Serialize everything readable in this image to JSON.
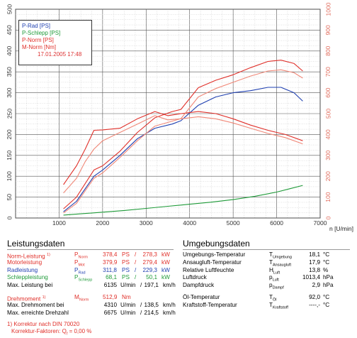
{
  "chart_data": {
    "type": "line",
    "xlabel": "n [U/min]",
    "x_ticks": [
      "1000",
      "2000",
      "3000",
      "4000",
      "5000",
      "6000",
      "7000"
    ],
    "y_left_ticks": [
      "0",
      "50",
      "100",
      "150",
      "200",
      "250",
      "300",
      "350",
      "400",
      "450",
      "500"
    ],
    "y_right_ticks": [
      "0",
      "100",
      "200",
      "300",
      "400",
      "500",
      "600",
      "700",
      "800",
      "900",
      "1000"
    ],
    "xlim": [
      0,
      7000
    ],
    "ylim_left": [
      0,
      500
    ],
    "ylim_right": [
      0,
      1000
    ],
    "grid": true,
    "legend_position": "top-left",
    "series": [
      {
        "name": "P-Rad [PS]",
        "color": "#1e3fb0",
        "axis": "left",
        "points": [
          [
            1100,
            15
          ],
          [
            1400,
            40
          ],
          [
            1800,
            100
          ],
          [
            2000,
            115
          ],
          [
            2400,
            150
          ],
          [
            2800,
            190
          ],
          [
            3200,
            215
          ],
          [
            3600,
            225
          ],
          [
            3800,
            233
          ],
          [
            4200,
            270
          ],
          [
            4600,
            290
          ],
          [
            5000,
            300
          ],
          [
            5400,
            305
          ],
          [
            5800,
            313
          ],
          [
            6100,
            313
          ],
          [
            6400,
            300
          ],
          [
            6600,
            280
          ]
        ]
      },
      {
        "name": "P-Schlepp [PS]",
        "color": "#1e9a38",
        "axis": "left",
        "points": [
          [
            1100,
            7
          ],
          [
            1500,
            10
          ],
          [
            2000,
            14
          ],
          [
            2500,
            18
          ],
          [
            3000,
            23
          ],
          [
            3500,
            28
          ],
          [
            4000,
            33
          ],
          [
            4500,
            38
          ],
          [
            5000,
            44
          ],
          [
            5500,
            52
          ],
          [
            6000,
            62
          ],
          [
            6300,
            70
          ],
          [
            6600,
            78
          ]
        ]
      },
      {
        "name": "P-Norm [PS]",
        "color": "#e0302a",
        "axis": "left",
        "points": [
          [
            1100,
            22
          ],
          [
            1400,
            50
          ],
          [
            1800,
            115
          ],
          [
            2000,
            125
          ],
          [
            2400,
            160
          ],
          [
            2800,
            205
          ],
          [
            3200,
            240
          ],
          [
            3600,
            255
          ],
          [
            3800,
            260
          ],
          [
            4200,
            312
          ],
          [
            4600,
            330
          ],
          [
            5000,
            343
          ],
          [
            5400,
            360
          ],
          [
            5800,
            375
          ],
          [
            6100,
            378
          ],
          [
            6400,
            370
          ],
          [
            6600,
            352
          ]
        ]
      },
      {
        "name": "M-Norm [Nm]",
        "color": "#e0302a",
        "axis": "right",
        "points": [
          [
            1100,
            160
          ],
          [
            1400,
            250
          ],
          [
            1600,
            330
          ],
          [
            1800,
            420
          ],
          [
            2000,
            422
          ],
          [
            2400,
            430
          ],
          [
            2800,
            475
          ],
          [
            3200,
            510
          ],
          [
            3500,
            490
          ],
          [
            3800,
            500
          ],
          [
            4200,
            510
          ],
          [
            4600,
            500
          ],
          [
            5000,
            475
          ],
          [
            5400,
            445
          ],
          [
            5800,
            420
          ],
          [
            6200,
            400
          ],
          [
            6600,
            370
          ]
        ]
      },
      {
        "color": "#f08878",
        "axis": "left",
        "points": [
          [
            1100,
            12
          ],
          [
            1400,
            35
          ],
          [
            1800,
            95
          ],
          [
            2000,
            108
          ],
          [
            2400,
            145
          ],
          [
            2800,
            185
          ],
          [
            3200,
            220
          ],
          [
            3600,
            232
          ],
          [
            3800,
            238
          ],
          [
            4200,
            290
          ],
          [
            4600,
            310
          ],
          [
            5000,
            325
          ],
          [
            5400,
            340
          ],
          [
            5800,
            352
          ],
          [
            6100,
            355
          ],
          [
            6400,
            348
          ],
          [
            6600,
            335
          ]
        ]
      },
      {
        "color": "#f08878",
        "axis": "right",
        "points": [
          [
            1100,
            120
          ],
          [
            1400,
            190
          ],
          [
            1600,
            270
          ],
          [
            1800,
            330
          ],
          [
            2000,
            370
          ],
          [
            2400,
            410
          ],
          [
            2800,
            450
          ],
          [
            3200,
            490
          ],
          [
            3500,
            470
          ],
          [
            3800,
            475
          ],
          [
            4200,
            485
          ],
          [
            4600,
            475
          ],
          [
            5000,
            455
          ],
          [
            5400,
            430
          ],
          [
            5800,
            405
          ],
          [
            6200,
            385
          ],
          [
            6600,
            355
          ]
        ]
      }
    ]
  },
  "legend": {
    "p_rad": "P-Rad [PS]",
    "p_schlepp": "P-Schlepp [PS]",
    "p_norm": "P-Norm [PS]",
    "m_norm": "M-Norm [Nm]",
    "date": "17.01.2005 17:48"
  },
  "leistung": {
    "title": "Leistungsdaten",
    "rows": [
      {
        "label": "Norm-Leistung",
        "sup": "1)",
        "sym": "P",
        "sub": "Norm",
        "v1": "378,4",
        "u1": "PS",
        "sep": "/",
        "v2": "278,3",
        "u2": "kW"
      },
      {
        "label": "Motorleistung",
        "sup": "",
        "sym": "P",
        "sub": "Mot",
        "v1": "379,9",
        "u1": "PS",
        "sep": "/",
        "v2": "279,4",
        "u2": "kW"
      },
      {
        "label": "Radleistung",
        "sup": "",
        "sym": "P",
        "sub": "Rad",
        "v1": "311,8",
        "u1": "PS",
        "sep": "/",
        "v2": "229,3",
        "u2": "kW"
      },
      {
        "label": "Schleppleistung",
        "sup": "",
        "sym": "P",
        "sub": "Schlepp",
        "v1": "68,1",
        "u1": "PS",
        "sep": "/",
        "v2": "50,1",
        "u2": "kW"
      }
    ],
    "max_leistung_bei": {
      "label": "Max. Leistung bei",
      "v1": "6135",
      "u1": "U/min",
      "sep": "/",
      "v2": "197,1",
      "u2": "km/h"
    },
    "drehmoment": {
      "label": "Drehmoment",
      "sup": "1)",
      "sym": "M",
      "sub": "Norm",
      "v1": "512,9",
      "u1": "Nm"
    },
    "max_drehmoment_bei": {
      "label": "Max. Drehmoment bei",
      "v1": "4310",
      "u1": "U/min",
      "sep": "/",
      "v2": "138,5",
      "u2": "km/h"
    },
    "max_drehzahl": {
      "label": "Max. erreichte Drehzahl",
      "v1": "6675",
      "u1": "U/min",
      "sep": "/",
      "v2": "214,5",
      "u2": "km/h"
    }
  },
  "umgebung": {
    "title": "Umgebungsdaten",
    "rows": [
      {
        "label": "Umgebungs-Temperatur",
        "sym": "T",
        "sub": "Umgebung",
        "value": "18,1",
        "unit": "°C"
      },
      {
        "label": "Ansaugluft-Temperatur",
        "sym": "T",
        "sub": "Ansaugluft",
        "value": "17,9",
        "unit": "°C"
      },
      {
        "label": "Relative Luftfeuchte",
        "sym": "H",
        "sub": "Luft",
        "value": "13,8",
        "unit": "%"
      },
      {
        "label": "Luftdruck",
        "sym": "p",
        "sub": "Luft",
        "value": "1013,4",
        "unit": "hPa"
      },
      {
        "label": "Dampfdruck",
        "sym": "p",
        "sub": "Dampf",
        "value": "2,9",
        "unit": "hPa"
      },
      {
        "label": "Öl-Temperatur",
        "sym": "T",
        "sub": "Öl",
        "value": "92,0",
        "unit": "°C"
      },
      {
        "label": "Kraftstoff-Temperatur",
        "sym": "T",
        "sub": "Kraftstoff",
        "value": "----,-",
        "unit": "°C"
      }
    ]
  },
  "footer": {
    "line1": "1) Korrektur nach DIN 70020",
    "line2": "Korrektur-Faktoren: Q",
    "line2_sub": "f",
    "line2_rest": " = 0,00 %"
  }
}
